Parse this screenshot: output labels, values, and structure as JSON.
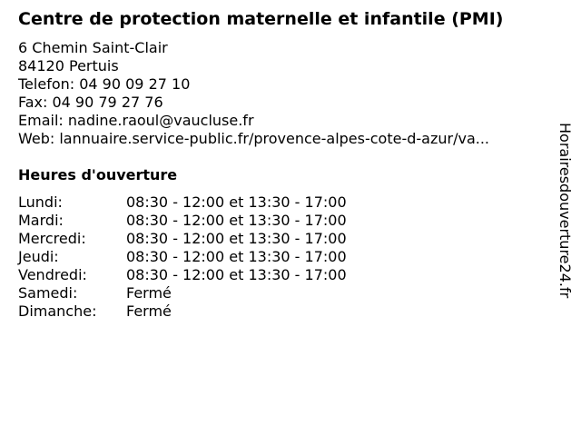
{
  "title": "Centre de protection maternelle et infantile (PMI)",
  "address": {
    "street": "6 Chemin Saint-Clair",
    "city": "84120 Pertuis",
    "phone": "Telefon: 04 90 09 27 10",
    "fax": "Fax: 04 90 79 27 76",
    "email": "Email: nadine.raoul@vaucluse.fr",
    "web": "Web: lannuaire.service-public.fr/provence-alpes-cote-d-azur/va..."
  },
  "hours_heading": "Heures d'ouverture",
  "hours": [
    {
      "day": "Lundi:",
      "time": "08:30 - 12:00 et 13:30 - 17:00"
    },
    {
      "day": "Mardi:",
      "time": "08:30 - 12:00 et 13:30 - 17:00"
    },
    {
      "day": "Mercredi:",
      "time": "08:30 - 12:00 et 13:30 - 17:00"
    },
    {
      "day": "Jeudi:",
      "time": "08:30 - 12:00 et 13:30 - 17:00"
    },
    {
      "day": "Vendredi:",
      "time": "08:30 - 12:00 et 13:30 - 17:00"
    },
    {
      "day": "Samedi:",
      "time": "Fermé"
    },
    {
      "day": "Dimanche:",
      "time": "Fermé"
    }
  ],
  "watermark": "Horairesdouverture24.fr"
}
